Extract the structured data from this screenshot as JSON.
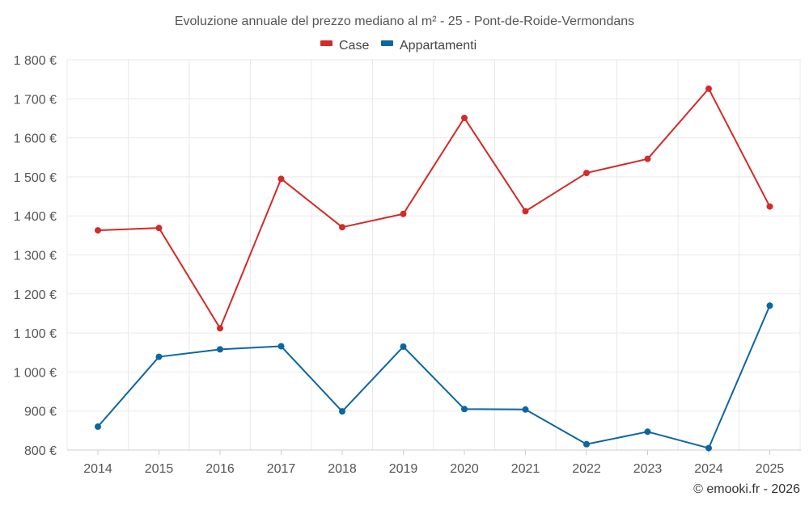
{
  "chart_data": {
    "type": "line",
    "title": "Evoluzione annuale del prezzo mediano al m² - 25 - Pont-de-Roide-Vermondans",
    "categories": [
      "2014",
      "2015",
      "2016",
      "2017",
      "2018",
      "2019",
      "2020",
      "2021",
      "2022",
      "2023",
      "2024",
      "2025"
    ],
    "series": [
      {
        "name": "Case",
        "color": "#d42a2a",
        "values": [
          1363,
          1369,
          1112,
          1495,
          1371,
          1405,
          1651,
          1412,
          1510,
          1546,
          1726,
          1424
        ]
      },
      {
        "name": "Appartamenti",
        "color": "#0c66a0",
        "values": [
          860,
          1039,
          1058,
          1066,
          899,
          1065,
          905,
          904,
          815,
          847,
          805,
          1170
        ]
      }
    ],
    "ylim": [
      800,
      1800
    ],
    "yticks": [
      800,
      900,
      1000,
      1100,
      1200,
      1300,
      1400,
      1500,
      1600,
      1700,
      1800
    ],
    "ytick_labels": [
      "800 €",
      "900 €",
      "1 000 €",
      "1 100 €",
      "1 200 €",
      "1 300 €",
      "1 400 €",
      "1 500 €",
      "1 600 €",
      "1 700 €",
      "1 800 €"
    ],
    "xlabel": "",
    "ylabel": "",
    "grid": true,
    "legend_position": "top-center"
  },
  "credit": "© emooki.fr - 2026"
}
